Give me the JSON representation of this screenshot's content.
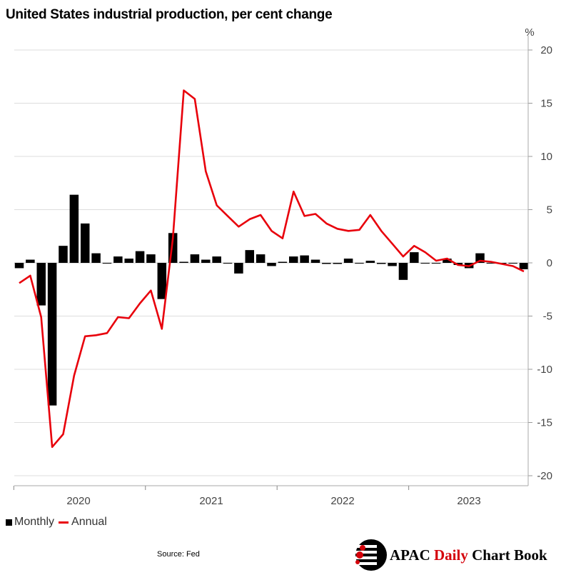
{
  "title": "United States industrial production, per cent change",
  "unit_label": "%",
  "legend": {
    "monthly": "Monthly",
    "annual": "Annual"
  },
  "source": "Source: Fed",
  "brand": {
    "part1": "APAC",
    "part2": "Daily",
    "part3": "Chart Book"
  },
  "colors": {
    "bars": "#000000",
    "line": "#e8000b",
    "grid": "#dddddd",
    "brand_red": "#d4000a"
  },
  "chart_data": {
    "type": "bar+line",
    "title": "United States industrial production, per cent change",
    "ylabel": "%",
    "ylim": [
      -20,
      20
    ],
    "yticks": [
      20,
      15,
      10,
      5,
      0,
      -5,
      -10,
      -15,
      -20
    ],
    "year_labels": [
      "2020",
      "2021",
      "2022",
      "2023"
    ],
    "months": [
      "2019-12",
      "2020-01",
      "2020-02",
      "2020-03",
      "2020-04",
      "2020-05",
      "2020-06",
      "2020-07",
      "2020-08",
      "2020-09",
      "2020-10",
      "2020-11",
      "2020-12",
      "2021-01",
      "2021-02",
      "2021-03",
      "2021-04",
      "2021-05",
      "2021-06",
      "2021-07",
      "2021-08",
      "2021-09",
      "2021-10",
      "2021-11",
      "2021-12",
      "2022-01",
      "2022-02",
      "2022-03",
      "2022-04",
      "2022-05",
      "2022-06",
      "2022-07",
      "2022-08",
      "2022-09",
      "2022-10",
      "2022-11",
      "2022-12",
      "2023-01",
      "2023-02",
      "2023-03",
      "2023-04",
      "2023-05",
      "2023-06",
      "2023-07",
      "2023-08",
      "2023-09",
      "2023-10"
    ],
    "series": [
      {
        "name": "Monthly",
        "kind": "bar",
        "values": [
          -0.5,
          0.3,
          -4.0,
          -13.4,
          1.6,
          6.4,
          3.7,
          0.9,
          0.0,
          0.6,
          0.4,
          1.1,
          0.8,
          -3.4,
          2.8,
          0.1,
          0.8,
          0.3,
          0.6,
          0.0,
          -1.0,
          1.2,
          0.8,
          -0.3,
          0.1,
          0.6,
          0.7,
          0.3,
          -0.1,
          -0.1,
          0.4,
          0.0,
          0.2,
          -0.1,
          -0.3,
          -1.6,
          1.0,
          0.0,
          0.0,
          0.4,
          -0.2,
          -0.5,
          0.9,
          0.0,
          0.0,
          0.0,
          -0.6
        ]
      },
      {
        "name": "Annual",
        "kind": "line",
        "values": [
          -1.9,
          -1.2,
          -5.1,
          -17.3,
          -16.1,
          -10.6,
          -6.9,
          -6.8,
          -6.6,
          -5.1,
          -5.2,
          -3.8,
          -2.6,
          -6.2,
          2.3,
          16.2,
          15.4,
          8.6,
          5.4,
          4.4,
          3.4,
          4.1,
          4.5,
          3.0,
          2.3,
          6.7,
          4.4,
          4.6,
          3.7,
          3.2,
          3.0,
          3.1,
          4.5,
          3.0,
          1.8,
          0.6,
          1.6,
          1.0,
          0.2,
          0.4,
          -0.2,
          -0.3,
          0.2,
          0.1,
          -0.1,
          -0.3,
          -0.8
        ]
      }
    ]
  }
}
